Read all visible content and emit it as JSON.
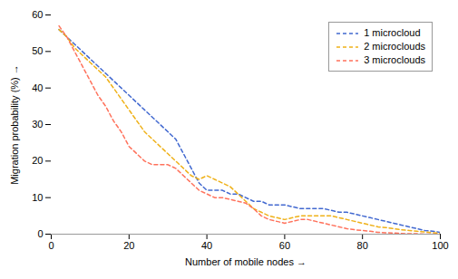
{
  "chart_data": {
    "type": "line",
    "xlabel": "Number of mobile nodes",
    "ylabel": "Migration probability (%)",
    "x": [
      2,
      4,
      6,
      8,
      10,
      12,
      14,
      16,
      18,
      20,
      22,
      24,
      26,
      28,
      30,
      32,
      34,
      36,
      38,
      40,
      42,
      44,
      46,
      48,
      50,
      52,
      54,
      56,
      58,
      60,
      62,
      64,
      66,
      68,
      70,
      72,
      74,
      76,
      78,
      80,
      82,
      84,
      86,
      88,
      90,
      92,
      94,
      96,
      98,
      100
    ],
    "series": [
      {
        "name": "1 microcloud",
        "values": [
          56,
          54,
          52,
          50,
          48,
          46,
          44,
          42,
          40,
          38,
          36,
          34,
          32,
          30,
          28,
          26,
          22,
          18,
          14,
          12,
          12,
          12,
          11,
          11,
          10,
          9,
          9,
          8,
          8,
          8,
          7.5,
          7,
          7,
          7,
          7,
          6.5,
          6,
          6,
          5.5,
          5,
          4.5,
          4,
          3.5,
          3,
          2.5,
          2,
          1.5,
          1,
          0.8,
          0.5
        ]
      },
      {
        "name": "2 microclouds",
        "values": [
          56,
          54,
          51,
          49,
          47,
          45,
          43,
          40,
          37,
          34,
          31,
          28,
          26,
          24,
          22,
          20,
          18,
          16,
          15,
          16,
          15,
          14,
          13,
          11,
          9,
          7,
          6,
          5,
          4.5,
          4,
          4.5,
          5,
          5,
          5,
          5,
          5,
          4.5,
          4,
          3.5,
          3,
          2.5,
          2,
          1.8,
          1.5,
          1.2,
          1,
          0.8,
          0.6,
          0.4,
          0.2
        ]
      },
      {
        "name": "3 microclouds",
        "values": [
          57,
          54,
          50,
          46,
          42,
          38,
          35,
          31,
          28,
          24,
          22,
          20,
          19,
          19,
          19,
          18,
          16,
          14,
          12,
          11,
          10,
          10,
          9.5,
          9,
          8.5,
          7,
          5,
          4,
          3.5,
          3,
          3.5,
          4,
          4,
          3.5,
          3,
          2.5,
          2,
          1.5,
          1.2,
          1,
          0.8,
          0.5,
          0.4,
          0.3,
          0.2,
          0.1,
          0.1,
          0,
          0,
          0
        ]
      }
    ],
    "xlim": [
      0,
      100
    ],
    "ylim": [
      0,
      60
    ],
    "xticks": [
      0,
      20,
      40,
      60,
      80,
      100
    ],
    "yticks": [
      0,
      10,
      20,
      30,
      40,
      50,
      60
    ],
    "legend": "upper right",
    "line_style": "dashed",
    "grid": false
  }
}
